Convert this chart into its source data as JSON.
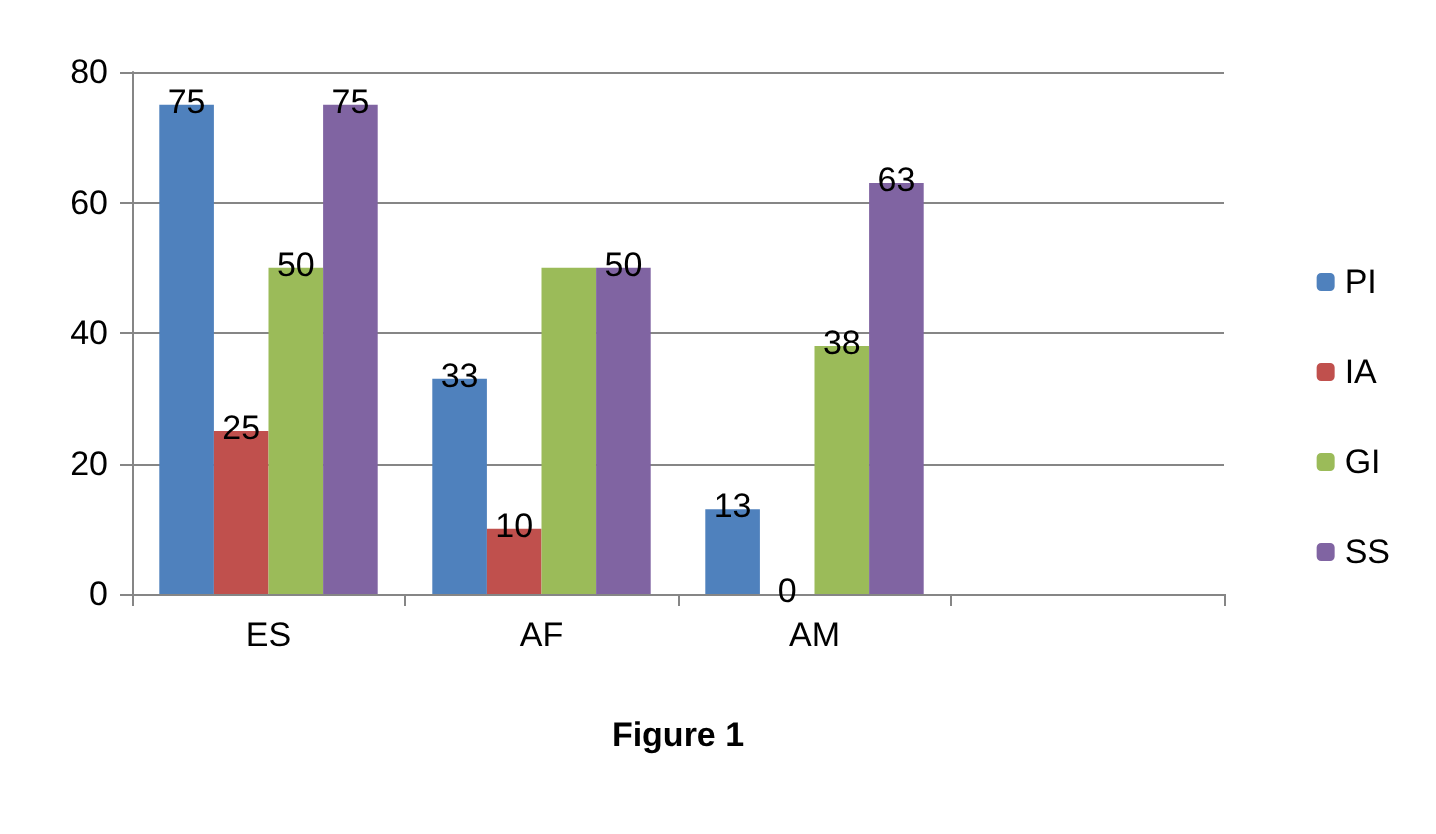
{
  "chart_data": {
    "type": "bar",
    "xlabel": "Figure 1",
    "categories": [
      "ES",
      "AF",
      "AM",
      null
    ],
    "series": [
      {
        "name": "PI",
        "color": "#4f81bd",
        "values": [
          75,
          33,
          13,
          null
        ],
        "value_labels": [
          "75",
          "33",
          "13",
          null
        ]
      },
      {
        "name": "IA",
        "color": "#c0504d",
        "values": [
          25,
          10,
          0,
          null
        ],
        "value_labels": [
          "25",
          "10",
          "0",
          null
        ]
      },
      {
        "name": "GI",
        "color": "#9bbb59",
        "values": [
          50,
          50,
          38,
          null
        ],
        "value_labels": [
          "50",
          null,
          "38",
          null
        ]
      },
      {
        "name": "SS",
        "color": "#8064a2",
        "values": [
          75,
          50,
          63,
          null
        ],
        "value_labels": [
          "75",
          "50",
          "63",
          null
        ]
      }
    ],
    "ylim": [
      0,
      80
    ],
    "yticks": [
      0,
      20,
      40,
      60,
      80
    ],
    "grid": "y",
    "legend": "right"
  }
}
